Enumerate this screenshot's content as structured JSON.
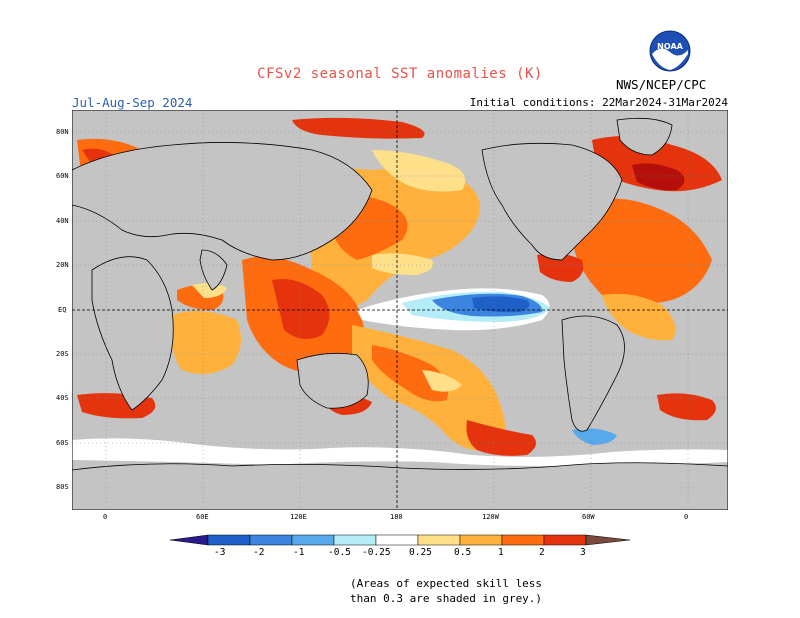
{
  "header": {
    "title": "CFSv2 seasonal SST anomalies (K)",
    "season": "Jul-Aug-Sep 2024",
    "initial_conditions": "Initial conditions: 22Mar2024-31Mar2024",
    "agency": "NWS/NCEP/CPC",
    "logo_text": "NOAA"
  },
  "map": {
    "lat_labels": [
      "80N",
      "60N",
      "40N",
      "20N",
      "EQ",
      "20S",
      "40S",
      "60S",
      "80S"
    ],
    "lon_labels": [
      "0",
      "60E",
      "120E",
      "180",
      "120W",
      "60W",
      "0"
    ],
    "land_color": "#c4c4c4",
    "ocean_color": "#ffffff"
  },
  "legend": {
    "labels": [
      "-3",
      "-2",
      "-1",
      "-0.5",
      "-0.25",
      "0.25",
      "0.5",
      "1",
      "2",
      "3"
    ],
    "colors": [
      "#2a1b8c",
      "#1f5fc8",
      "#3b84e0",
      "#58a8ec",
      "#b4ecf8",
      "#ffffff",
      "#ffe08a",
      "#ffb13b",
      "#ff6b0f",
      "#e5330d",
      "#b40f0a",
      "#7a4a3e"
    ]
  },
  "footnote": {
    "line1": "(Areas of expected skill less",
    "line2": "than 0.3 are shaded in grey.)"
  }
}
